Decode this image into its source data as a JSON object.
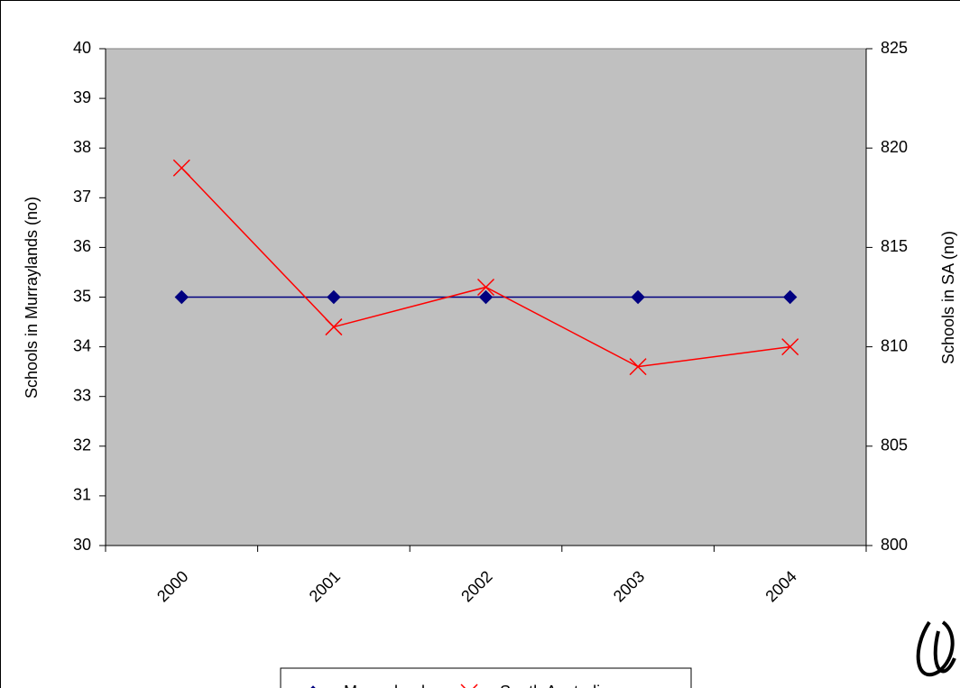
{
  "chart_data": {
    "type": "line",
    "categories": [
      "2000",
      "2001",
      "2002",
      "2003",
      "2004"
    ],
    "ylabel": "Schools in Murraylands (no)",
    "y2label": "Schools in SA (no)",
    "ylim": [
      30,
      40
    ],
    "yticks": [
      30,
      31,
      32,
      33,
      34,
      35,
      36,
      37,
      38,
      39,
      40
    ],
    "y2lim": [
      800,
      825
    ],
    "y2ticks": [
      800,
      805,
      810,
      815,
      820,
      825
    ],
    "plot_background": "#c0c0c0",
    "legend": "bottom",
    "series": [
      {
        "name": "Murraylands",
        "color": "#000080",
        "marker": "diamond",
        "values": [
          35,
          35,
          35,
          35,
          35
        ]
      },
      {
        "name": "South Australia",
        "color": "#ff0000",
        "marker": "x",
        "axis": "y2",
        "values": [
          819,
          811,
          813,
          809,
          810
        ]
      }
    ]
  }
}
